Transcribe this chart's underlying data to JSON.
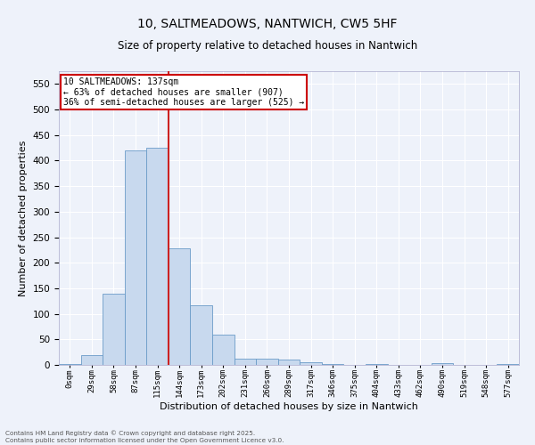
{
  "title": "10, SALTMEADOWS, NANTWICH, CW5 5HF",
  "subtitle": "Size of property relative to detached houses in Nantwich",
  "xlabel": "Distribution of detached houses by size in Nantwich",
  "ylabel": "Number of detached properties",
  "categories": [
    "0sqm",
    "29sqm",
    "58sqm",
    "87sqm",
    "115sqm",
    "144sqm",
    "173sqm",
    "202sqm",
    "231sqm",
    "260sqm",
    "289sqm",
    "317sqm",
    "346sqm",
    "375sqm",
    "404sqm",
    "433sqm",
    "462sqm",
    "490sqm",
    "519sqm",
    "548sqm",
    "577sqm"
  ],
  "values": [
    2,
    20,
    140,
    420,
    425,
    228,
    116,
    59,
    12,
    12,
    10,
    5,
    2,
    0,
    1,
    0,
    0,
    3,
    0,
    0,
    2
  ],
  "bar_color": "#c8d9ee",
  "bar_edge_color": "#6b9cc8",
  "red_line_x": 4.5,
  "annotation_text_line1": "10 SALTMEADOWS: 137sqm",
  "annotation_text_line2": "← 63% of detached houses are smaller (907)",
  "annotation_text_line3": "36% of semi-detached houses are larger (525) →",
  "annotation_box_facecolor": "#ffffff",
  "annotation_box_edgecolor": "#cc0000",
  "background_color": "#eef2fa",
  "grid_color": "#ffffff",
  "ylim_max": 575,
  "yticks": [
    0,
    50,
    100,
    150,
    200,
    250,
    300,
    350,
    400,
    450,
    500,
    550
  ],
  "footer1": "Contains HM Land Registry data © Crown copyright and database right 2025.",
  "footer2": "Contains public sector information licensed under the Open Government Licence v3.0."
}
